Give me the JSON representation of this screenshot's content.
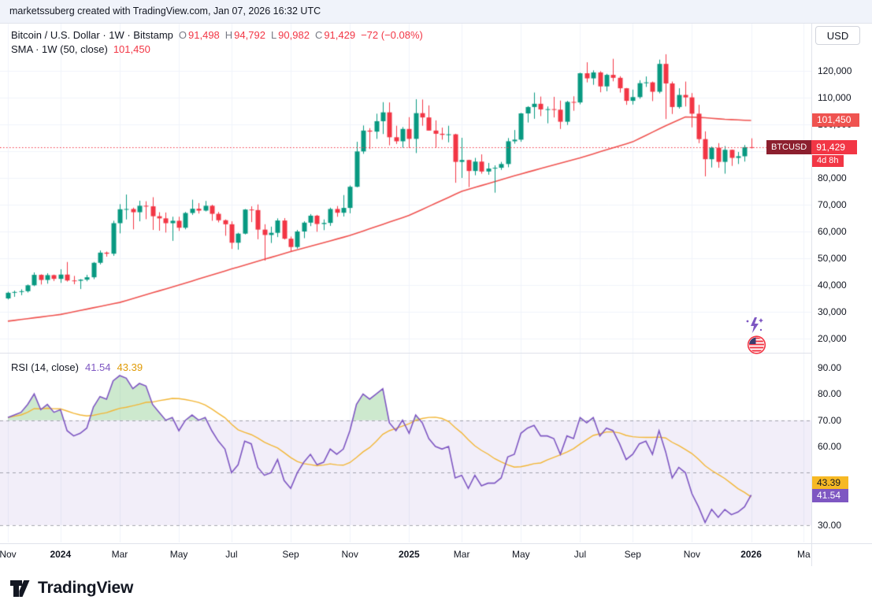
{
  "attribution": {
    "text": "marketssuberg created with TradingView.com, Jan 07, 2026 16:32 UTC"
  },
  "header": {
    "symbol_title": "Bitcoin / U.S. Dollar · 1W · Bitstamp",
    "ohlc_labels": {
      "o": "O",
      "h": "H",
      "l": "L",
      "c": "C"
    },
    "ohlc_values": {
      "o": "91,498",
      "h": "94,792",
      "l": "90,982",
      "c": "91,429",
      "change": "−72 (−0.08%)"
    },
    "indicator_label": "SMA · 1W (50, close)",
    "indicator_value": "101,450",
    "currency_button_label": "USD"
  },
  "rsi_pane": {
    "legend_label": "RSI (14, close)",
    "legend_value": "41.54",
    "legend_ma_value": "43.39"
  },
  "badges": {
    "sma_price": "101,450",
    "symbol": "BTCUSD",
    "last_price": "91,429",
    "countdown": "4d 8h",
    "rsi_ma": "43.39",
    "rsi": "41.54"
  },
  "axes": {
    "price_ticks": [
      {
        "label": "120,000",
        "value": 120000
      },
      {
        "label": "110,000",
        "value": 110000
      },
      {
        "label": "100,000",
        "value": 100000
      },
      {
        "label": "80,000",
        "value": 80000
      },
      {
        "label": "70,000",
        "value": 70000
      },
      {
        "label": "60,000",
        "value": 60000
      },
      {
        "label": "50,000",
        "value": 50000
      },
      {
        "label": "40,000",
        "value": 40000
      },
      {
        "label": "30,000",
        "value": 30000
      },
      {
        "label": "20,000",
        "value": 20000
      }
    ],
    "rsi_ticks": [
      {
        "label": "90.00",
        "value": 90
      },
      {
        "label": "80.00",
        "value": 80
      },
      {
        "label": "70.00",
        "value": 70
      },
      {
        "label": "60.00",
        "value": 60
      },
      {
        "label": "30.00",
        "value": 30
      }
    ],
    "time_ticks": [
      {
        "label": "Nov",
        "week": 0,
        "major": false
      },
      {
        "label": "2024",
        "week": 8,
        "major": true
      },
      {
        "label": "Mar",
        "week": 17,
        "major": false
      },
      {
        "label": "May",
        "week": 26,
        "major": false
      },
      {
        "label": "Jul",
        "week": 34,
        "major": false
      },
      {
        "label": "Sep",
        "week": 43,
        "major": false
      },
      {
        "label": "Nov",
        "week": 52,
        "major": false
      },
      {
        "label": "2025",
        "week": 61,
        "major": true
      },
      {
        "label": "Mar",
        "week": 69,
        "major": false
      },
      {
        "label": "May",
        "week": 78,
        "major": false
      },
      {
        "label": "Jul",
        "week": 87,
        "major": false
      },
      {
        "label": "Sep",
        "week": 95,
        "major": false
      },
      {
        "label": "Nov",
        "week": 104,
        "major": false
      },
      {
        "label": "2026",
        "week": 113,
        "major": true
      },
      {
        "label": "Ma",
        "week": 121,
        "major": false
      }
    ]
  },
  "footer": {
    "brand": "TradingView"
  },
  "colors": {
    "up": "#089981",
    "down": "#f23645",
    "sma": "#ef5350",
    "rsi_line": "#7e57c2",
    "rsi_ma": "#f2b636",
    "band_fill": "rgba(126,87,194,0.10)",
    "band_line": "rgba(120,123,134,0.65)",
    "overbought_fill": "rgba(76,175,80,0.28)",
    "grid": "#f0f3fa",
    "axis_border": "#e0e3eb"
  },
  "chart_data": [
    {
      "type": "candlestick",
      "title": "Bitcoin / U.S. Dollar",
      "interval": "1W",
      "exchange": "Bitstamp",
      "unit": "USD thousands",
      "start_week": "2023-11-06",
      "ylim": [
        14700,
        137600
      ],
      "last_bar": {
        "open": 91498,
        "high": 94792,
        "low": 90982,
        "close": 91429,
        "change": -72,
        "change_pct": -0.08
      },
      "candles": [
        [
          35.0,
          37.5,
          34.6,
          37.1
        ],
        [
          37.1,
          37.9,
          35.6,
          37.4
        ],
        [
          37.4,
          38.4,
          36.2,
          37.7
        ],
        [
          37.7,
          40.2,
          37.2,
          39.9
        ],
        [
          39.9,
          44.7,
          39.6,
          43.8
        ],
        [
          43.8,
          44.0,
          40.2,
          41.9
        ],
        [
          41.9,
          44.4,
          40.5,
          43.7
        ],
        [
          43.7,
          43.9,
          41.5,
          42.3
        ],
        [
          42.3,
          45.9,
          40.8,
          43.9
        ],
        [
          43.9,
          48.6,
          41.3,
          41.7
        ],
        [
          41.7,
          43.4,
          40.3,
          41.6
        ],
        [
          41.6,
          42.2,
          38.5,
          42.0
        ],
        [
          42.0,
          43.8,
          41.4,
          42.9
        ],
        [
          42.9,
          48.6,
          42.2,
          48.3
        ],
        [
          48.3,
          52.9,
          47.7,
          52.1
        ],
        [
          52.1,
          52.5,
          50.6,
          51.7
        ],
        [
          51.7,
          64.0,
          50.9,
          63.1
        ],
        [
          63.1,
          70.2,
          59.3,
          68.3
        ],
        [
          68.3,
          73.8,
          64.5,
          68.4
        ],
        [
          68.4,
          68.9,
          60.8,
          67.2
        ],
        [
          67.2,
          71.5,
          63.8,
          69.6
        ],
        [
          69.6,
          71.3,
          64.6,
          69.4
        ],
        [
          69.4,
          72.8,
          60.6,
          65.7
        ],
        [
          65.7,
          67.2,
          60.3,
          64.9
        ],
        [
          64.9,
          67.1,
          59.6,
          63.1
        ],
        [
          63.1,
          65.5,
          56.5,
          64.0
        ],
        [
          64.0,
          65.5,
          60.2,
          61.4
        ],
        [
          61.4,
          67.3,
          60.8,
          66.9
        ],
        [
          66.9,
          71.9,
          66.2,
          68.5
        ],
        [
          68.5,
          70.6,
          66.7,
          67.8
        ],
        [
          67.8,
          71.4,
          67.5,
          69.6
        ],
        [
          69.6,
          70.0,
          64.0,
          66.6
        ],
        [
          66.6,
          67.3,
          63.4,
          64.2
        ],
        [
          64.2,
          64.5,
          58.4,
          62.7
        ],
        [
          62.7,
          63.8,
          53.5,
          55.8
        ],
        [
          55.8,
          59.5,
          53.2,
          59.2
        ],
        [
          59.2,
          68.4,
          58.9,
          68.2
        ],
        [
          68.2,
          69.4,
          63.5,
          68.0
        ],
        [
          68.0,
          70.1,
          57.1,
          60.7
        ],
        [
          60.7,
          62.7,
          49.1,
          58.7
        ],
        [
          58.7,
          61.8,
          55.7,
          59.5
        ],
        [
          59.5,
          64.9,
          57.9,
          64.1
        ],
        [
          64.1,
          65.0,
          57.0,
          57.3
        ],
        [
          57.3,
          58.1,
          52.5,
          54.2
        ],
        [
          54.2,
          60.6,
          53.6,
          60.0
        ],
        [
          60.0,
          63.8,
          57.5,
          63.3
        ],
        [
          63.3,
          66.5,
          62.0,
          65.9
        ],
        [
          65.9,
          66.2,
          59.9,
          62.8
        ],
        [
          62.8,
          64.5,
          60.5,
          63.2
        ],
        [
          63.2,
          68.9,
          62.1,
          68.4
        ],
        [
          68.4,
          69.5,
          65.5,
          67.0
        ],
        [
          67.0,
          73.6,
          65.6,
          68.8
        ],
        [
          68.8,
          77.2,
          66.8,
          76.7
        ],
        [
          76.7,
          93.5,
          76.5,
          89.9
        ],
        [
          89.9,
          99.6,
          89.0,
          97.7
        ],
        [
          97.7,
          98.6,
          90.8,
          97.3
        ],
        [
          97.3,
          104.0,
          94.6,
          101.2
        ],
        [
          101.2,
          108.3,
          96.4,
          104.5
        ],
        [
          104.5,
          108.2,
          92.2,
          95.2
        ],
        [
          95.2,
          99.5,
          92.7,
          93.7
        ],
        [
          93.7,
          99.0,
          91.3,
          98.3
        ],
        [
          98.3,
          102.7,
          91.2,
          94.6
        ],
        [
          94.6,
          109.4,
          89.3,
          104.2
        ],
        [
          104.2,
          109.3,
          99.5,
          102.6
        ],
        [
          102.6,
          107.1,
          97.8,
          97.7
        ],
        [
          97.7,
          101.5,
          91.3,
          96.5
        ],
        [
          96.5,
          98.8,
          94.3,
          96.1
        ],
        [
          96.1,
          99.5,
          93.3,
          96.3
        ],
        [
          96.3,
          96.5,
          78.2,
          86.0
        ],
        [
          86.0,
          95.0,
          80.0,
          86.7
        ],
        [
          86.7,
          86.8,
          76.6,
          82.6
        ],
        [
          82.6,
          87.5,
          81.0,
          86.1
        ],
        [
          86.1,
          88.8,
          81.6,
          82.4
        ],
        [
          82.4,
          85.6,
          81.2,
          83.5
        ],
        [
          83.5,
          84.7,
          74.5,
          83.8
        ],
        [
          83.8,
          86.0,
          83.0,
          85.2
        ],
        [
          85.2,
          94.9,
          84.0,
          93.7
        ],
        [
          93.7,
          97.9,
          92.8,
          94.3
        ],
        [
          94.3,
          104.3,
          93.5,
          104.1
        ],
        [
          104.1,
          106.8,
          100.7,
          106.5
        ],
        [
          106.5,
          111.9,
          102.1,
          107.7
        ],
        [
          107.7,
          110.4,
          103.1,
          105.6
        ],
        [
          105.6,
          106.7,
          100.4,
          105.7
        ],
        [
          105.7,
          110.3,
          102.6,
          105.5
        ],
        [
          105.5,
          108.9,
          98.3,
          101.0
        ],
        [
          101.0,
          108.8,
          99.8,
          108.4
        ],
        [
          108.4,
          110.5,
          105.1,
          108.2
        ],
        [
          108.2,
          119.3,
          107.5,
          119.1
        ],
        [
          119.1,
          123.2,
          115.7,
          117.2
        ],
        [
          117.2,
          120.2,
          114.8,
          119.4
        ],
        [
          119.4,
          119.9,
          112.0,
          114.2
        ],
        [
          114.2,
          118.9,
          112.4,
          118.5
        ],
        [
          118.5,
          124.5,
          116.1,
          117.4
        ],
        [
          117.4,
          118.0,
          111.9,
          113.5
        ],
        [
          113.5,
          113.6,
          107.3,
          108.8
        ],
        [
          108.8,
          113.0,
          107.4,
          110.2
        ],
        [
          110.2,
          116.5,
          109.6,
          115.4
        ],
        [
          115.4,
          117.9,
          114.0,
          115.7
        ],
        [
          115.7,
          116.0,
          108.7,
          112.2
        ],
        [
          112.2,
          124.2,
          111.6,
          122.6
        ],
        [
          122.6,
          126.2,
          102.0,
          115.3
        ],
        [
          115.3,
          116.0,
          103.9,
          106.5
        ],
        [
          106.5,
          113.5,
          105.9,
          111.0
        ],
        [
          111.0,
          116.0,
          106.7,
          110.1
        ],
        [
          110.1,
          111.7,
          98.9,
          104.0
        ],
        [
          104.0,
          107.3,
          93.0,
          94.5
        ],
        [
          94.5,
          97.4,
          80.6,
          87.0
        ],
        [
          87.0,
          91.7,
          83.9,
          91.3
        ],
        [
          91.3,
          93.0,
          83.8,
          86.0
        ],
        [
          86.0,
          91.9,
          81.6,
          90.5
        ],
        [
          90.5,
          90.6,
          84.5,
          87.5
        ],
        [
          87.5,
          89.7,
          85.2,
          88.1
        ],
        [
          88.1,
          92.3,
          86.1,
          91.5
        ],
        [
          91.5,
          94.8,
          91.0,
          91.4
        ]
      ],
      "overlays": [
        {
          "name": "SMA 50 (1W, close)",
          "current_value": 101450,
          "color": "#ef5350",
          "keypoints": [
            [
              0,
              26.5
            ],
            [
              8,
              29.0
            ],
            [
              17,
              33.5
            ],
            [
              26,
              40.0
            ],
            [
              34,
              46.0
            ],
            [
              43,
              52.5
            ],
            [
              52,
              58.5
            ],
            [
              61,
              66.0
            ],
            [
              69,
              75.0
            ],
            [
              78,
              81.5
            ],
            [
              87,
              87.5
            ],
            [
              95,
              93.5
            ],
            [
              100,
              99.5
            ],
            [
              103,
              102.8
            ],
            [
              106,
              102.5
            ],
            [
              109,
              101.9
            ],
            [
              113,
              101.45
            ]
          ]
        }
      ]
    },
    {
      "type": "line",
      "title": "RSI (14, close)",
      "ylim": [
        23.4,
        95.4
      ],
      "bands": {
        "upper": 70,
        "middle": 50,
        "lower": 30
      },
      "current": {
        "rsi": 41.54,
        "ma": 43.39
      },
      "series": [
        {
          "name": "RSI",
          "color": "#7e57c2",
          "values": [
            71,
            72,
            73,
            76,
            80,
            74,
            76,
            73,
            74,
            66,
            64,
            65,
            67,
            75,
            79,
            78,
            85,
            87,
            86,
            82,
            84,
            83,
            76,
            73,
            70,
            71,
            66,
            70,
            72,
            70,
            71,
            66,
            62,
            59,
            50,
            53,
            62,
            61,
            52,
            49,
            50,
            55,
            47,
            44,
            50,
            54,
            57,
            53,
            54,
            59,
            57,
            59,
            66,
            76,
            80,
            78,
            80,
            82,
            69,
            66,
            70,
            65,
            72,
            69,
            63,
            60,
            59,
            60,
            48,
            49,
            44,
            49,
            45,
            46,
            46,
            48,
            56,
            57,
            65,
            67,
            68,
            64,
            64,
            63,
            57,
            64,
            63,
            71,
            69,
            71,
            64,
            67,
            66,
            61,
            55,
            57,
            61,
            62,
            57,
            66,
            58,
            48,
            52,
            50,
            42,
            37,
            31,
            36,
            33,
            36,
            34,
            35,
            37,
            41.54
          ]
        },
        {
          "name": "RSI-based MA",
          "color": "#f2b636",
          "derived": "SMA14 of RSI"
        }
      ]
    }
  ]
}
